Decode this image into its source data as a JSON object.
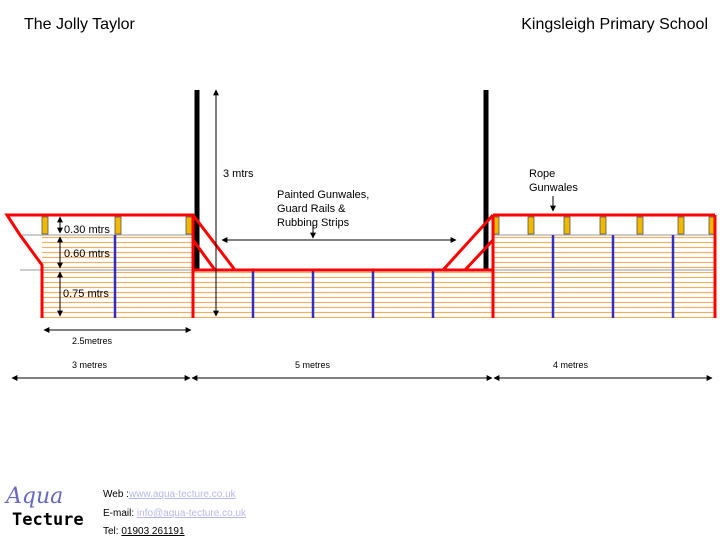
{
  "header": {
    "title_left": "The Jolly Taylor",
    "title_right": "Kingsleigh Primary School"
  },
  "labels": {
    "mast_height": "3 mtrs",
    "middle_note_1": "Painted Gunwales,",
    "middle_note_2": "Guard Rails &",
    "middle_note_3": "Rubbing Strips",
    "rope_note_1": "Rope",
    "rope_note_2": "Gunwales",
    "h1": "0.30 mtrs",
    "h2": "0.60 mtrs",
    "h3": "0.75 mtrs",
    "bow_len": "2.5metres",
    "len_left": "3 metres",
    "len_mid": "5 metres",
    "len_right": "4 metres"
  },
  "footer": {
    "web_label": "Web :",
    "web_value": "www.aqua-tecture.co.uk",
    "email_label": "E-mail:",
    "email_value": "info@aqua-tecture.co.uk",
    "tel_label": "Tel:",
    "tel_value": "01903 261191",
    "logo_top": "Aqua",
    "logo_bottom": "Tecture"
  },
  "colors": {
    "hull_outline": "#ff0000",
    "planks": "#f0b060",
    "posts": "#3030c0",
    "post_caps": "#f0b800",
    "mast": "#000000",
    "rope": "#a06000"
  }
}
